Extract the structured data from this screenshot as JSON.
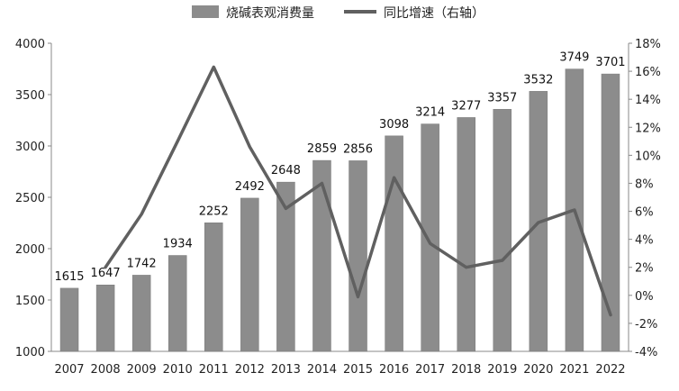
{
  "chart_data": {
    "type": "bar",
    "categories": [
      "2007",
      "2008",
      "2009",
      "2010",
      "2011",
      "2012",
      "2013",
      "2014",
      "2015",
      "2016",
      "2017",
      "2018",
      "2019",
      "2020",
      "2021",
      "2022"
    ],
    "series": [
      {
        "name": "烧碱表观消费量",
        "type": "bar",
        "axis": "left",
        "color": "#8c8c8c",
        "values": [
          1615,
          1647,
          1742,
          1934,
          2252,
          2492,
          2648,
          2859,
          2856,
          3098,
          3214,
          3277,
          3357,
          3532,
          3749,
          3701
        ],
        "labels": [
          "1615",
          "1647",
          "1742",
          "1934",
          "2252",
          "2492",
          "2648",
          "2859",
          "2856",
          "3098",
          "3214",
          "3277",
          "3357",
          "3532",
          "3749",
          "3701"
        ]
      },
      {
        "name": "同比增速（右轴）",
        "type": "line",
        "axis": "right",
        "color": "#606060",
        "values": [
          null,
          2.0,
          5.8,
          11.0,
          16.3,
          10.6,
          6.2,
          8.0,
          -0.1,
          8.4,
          3.7,
          2.0,
          2.5,
          5.2,
          6.1,
          -1.4
        ]
      }
    ],
    "ylim": [
      1000,
      4000
    ],
    "y2lim": [
      -4,
      18
    ],
    "yticks": [
      "1000",
      "1500",
      "2000",
      "2500",
      "3000",
      "3500",
      "4000"
    ],
    "y2ticks": [
      "-4%",
      "-2%",
      "0%",
      "2%",
      "4%",
      "6%",
      "8%",
      "10%",
      "12%",
      "14%",
      "16%",
      "18%"
    ],
    "legend_position": "top-center",
    "grid": false
  }
}
